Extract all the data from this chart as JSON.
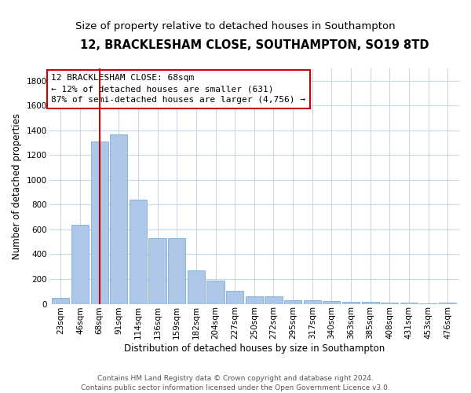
{
  "title1": "12, BRACKLESHAM CLOSE, SOUTHAMPTON, SO19 8TD",
  "title2": "Size of property relative to detached houses in Southampton",
  "xlabel": "Distribution of detached houses by size in Southampton",
  "ylabel": "Number of detached properties",
  "categories": [
    "23sqm",
    "46sqm",
    "68sqm",
    "91sqm",
    "114sqm",
    "136sqm",
    "159sqm",
    "182sqm",
    "204sqm",
    "227sqm",
    "250sqm",
    "272sqm",
    "295sqm",
    "317sqm",
    "340sqm",
    "363sqm",
    "385sqm",
    "408sqm",
    "431sqm",
    "453sqm",
    "476sqm"
  ],
  "values": [
    45,
    635,
    1310,
    1370,
    840,
    530,
    530,
    270,
    185,
    105,
    60,
    60,
    30,
    30,
    25,
    15,
    15,
    10,
    10,
    5,
    10
  ],
  "bar_color": "#aec6e8",
  "bar_edge_color": "#7aafd4",
  "vline_x_idx": 2,
  "vline_color": "#cc0000",
  "annotation_line1": "12 BRACKLESHAM CLOSE: 68sqm",
  "annotation_line2": "← 12% of detached houses are smaller (631)",
  "annotation_line3": "87% of semi-detached houses are larger (4,756) →",
  "annotation_box_color": "#ffffff",
  "annotation_box_edge": "#cc0000",
  "ylim": [
    0,
    1900
  ],
  "yticks": [
    0,
    200,
    400,
    600,
    800,
    1000,
    1200,
    1400,
    1600,
    1800
  ],
  "bg_color": "#ffffff",
  "grid_color": "#c8d8e8",
  "footer": "Contains HM Land Registry data © Crown copyright and database right 2024.\nContains public sector information licensed under the Open Government Licence v3.0.",
  "title1_fontsize": 10.5,
  "title2_fontsize": 9.5,
  "xlabel_fontsize": 8.5,
  "ylabel_fontsize": 8.5,
  "tick_fontsize": 7.5,
  "annotation_fontsize": 8,
  "footer_fontsize": 6.5
}
